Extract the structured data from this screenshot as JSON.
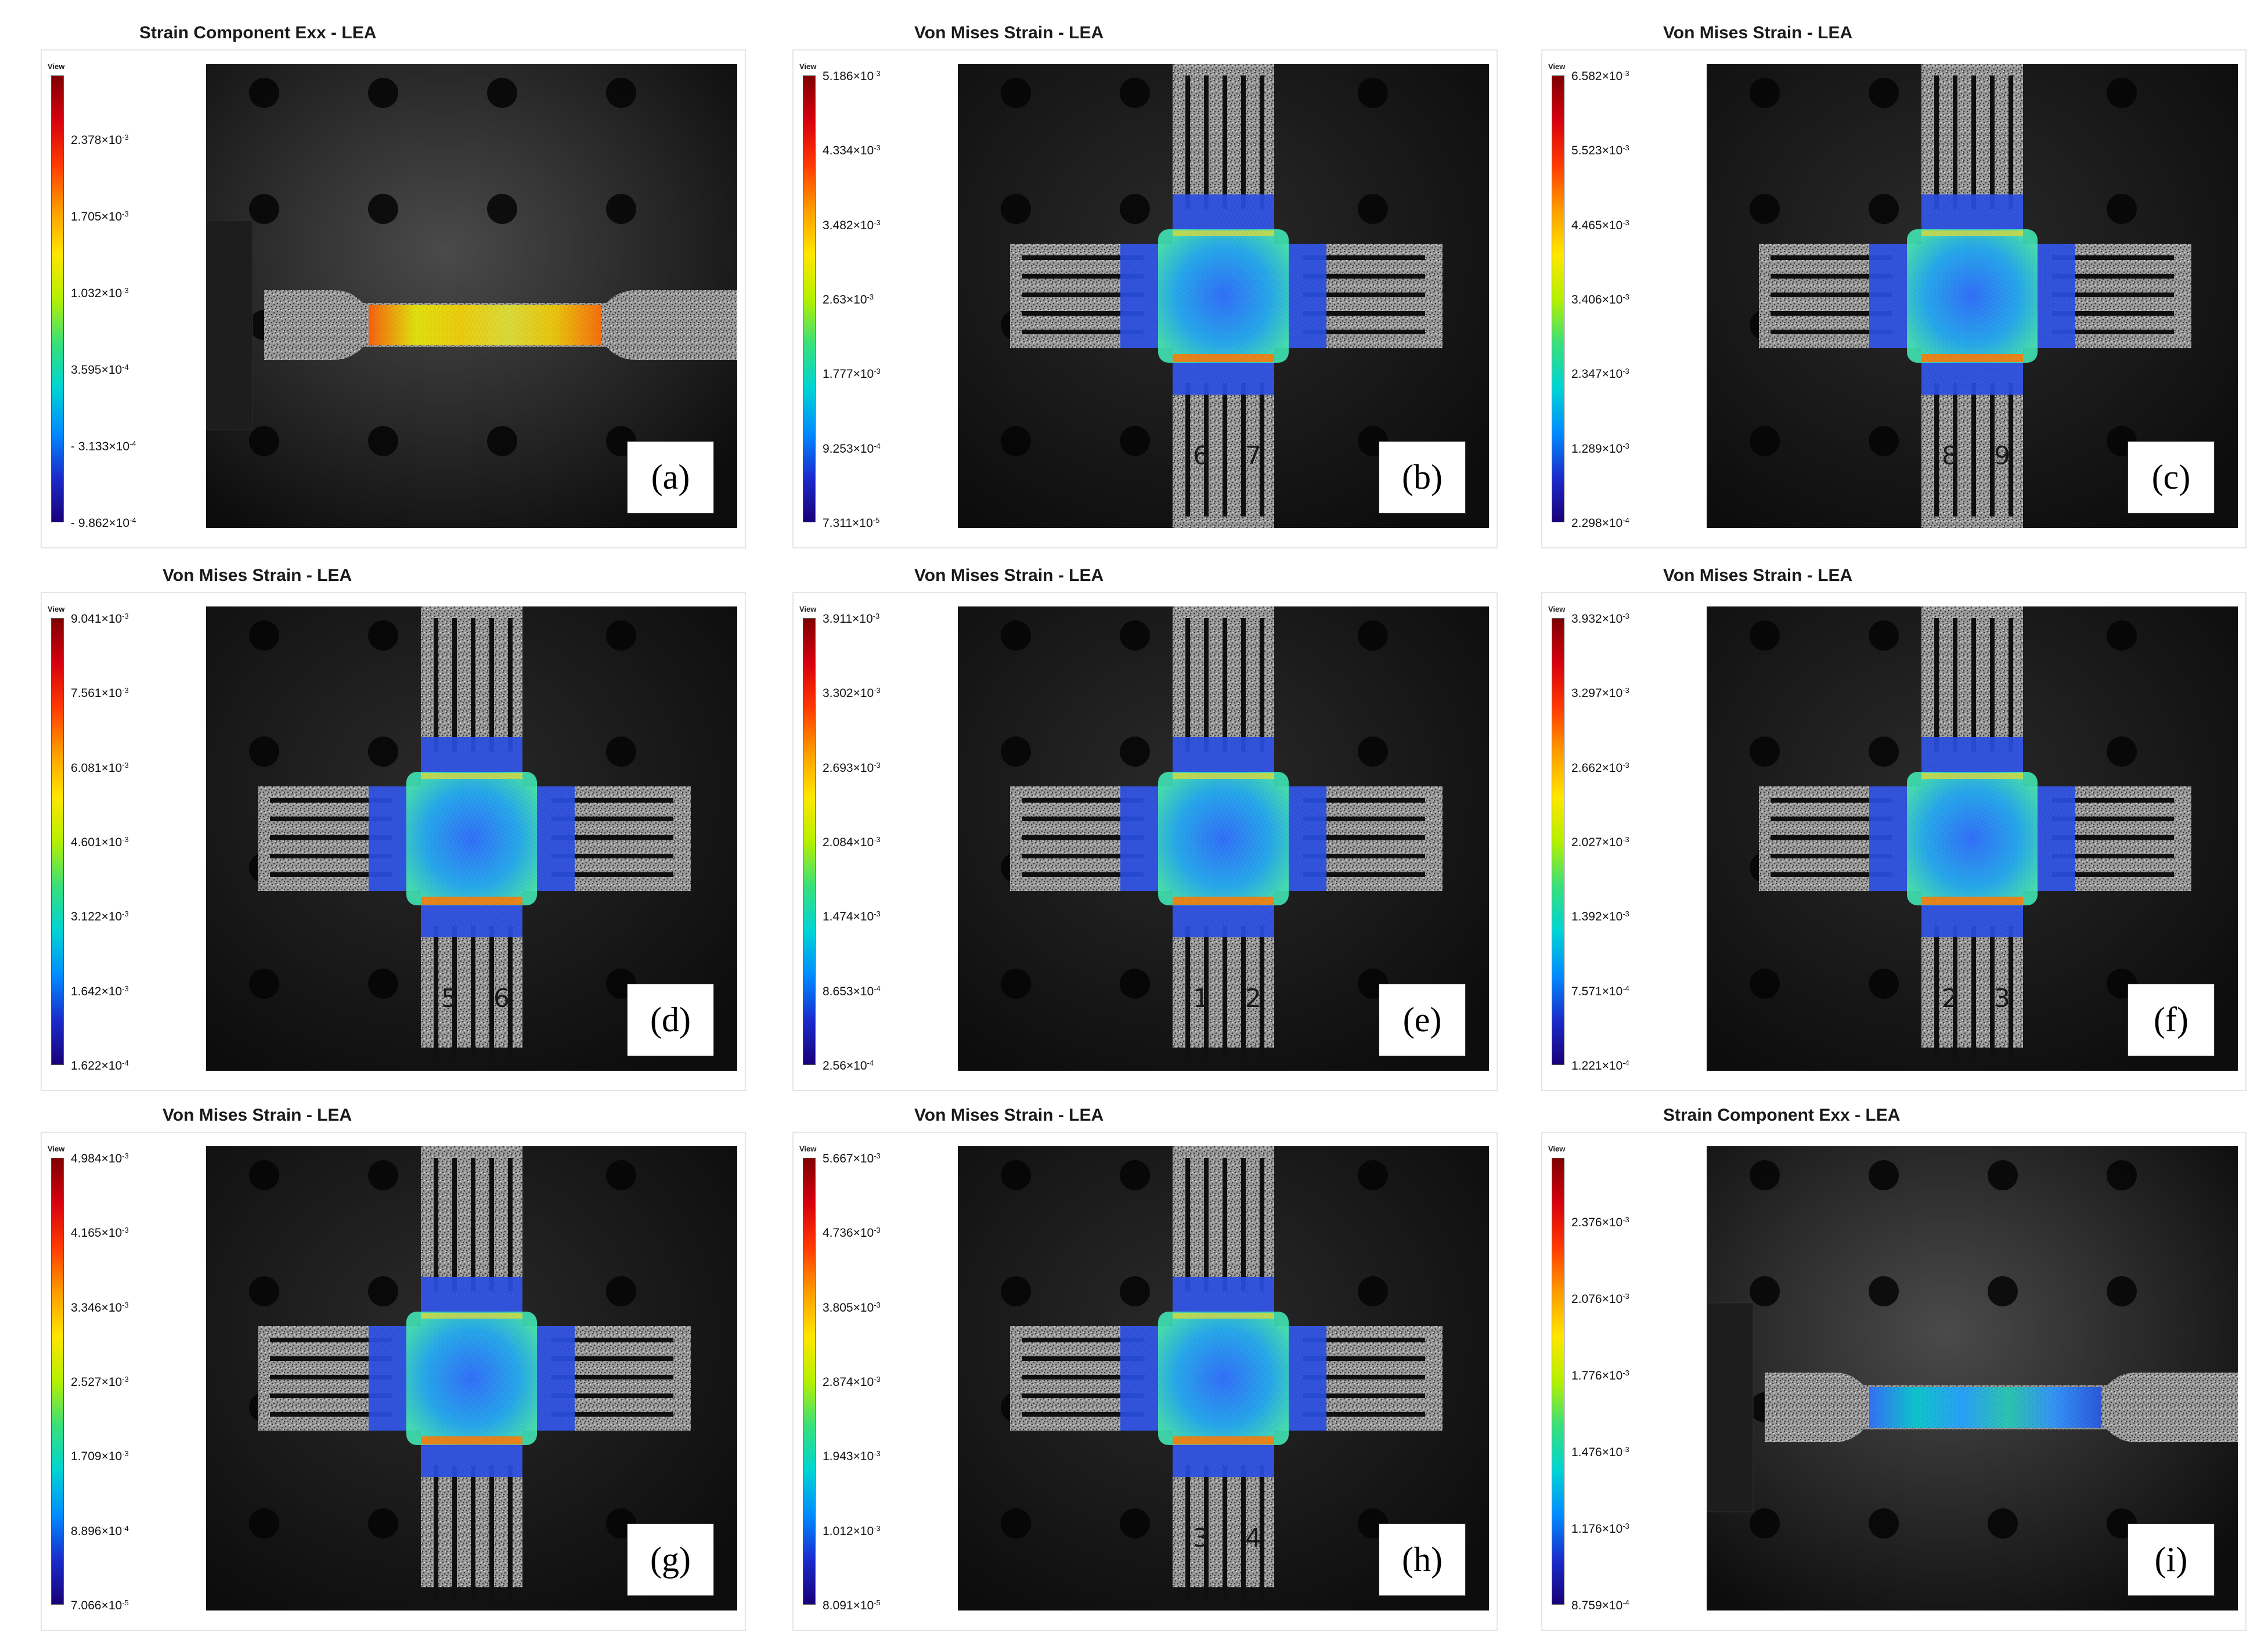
{
  "colormap": [
    "#7f0000",
    "#d7000f",
    "#ff3a00",
    "#ff9c00",
    "#ffe600",
    "#b5f000",
    "#38e07a",
    "#00d4d4",
    "#008cff",
    "#1a2ccc",
    "#19007a"
  ],
  "panels": [
    {
      "id": "a",
      "label": "(a)",
      "title": "Strain Component Exx - LEA",
      "view": "View",
      "type": "tensile",
      "field": "yellow",
      "ticks": [
        {
          "m": "2.378",
          "e": "-3"
        },
        {
          "m": "1.705",
          "e": "-3"
        },
        {
          "m": "1.032",
          "e": "-3"
        },
        {
          "m": "3.595",
          "e": "-4"
        },
        {
          "m": "- 3.133",
          "e": "-4"
        },
        {
          "m": "- 9.862",
          "e": "-4"
        }
      ]
    },
    {
      "id": "b",
      "label": "(b)",
      "title": "Von Mises Strain - LEA",
      "view": "View",
      "type": "cross",
      "variant": "tallbottom",
      "nums": [
        "6",
        "7"
      ],
      "ticks": [
        {
          "m": "5.186",
          "e": "-3"
        },
        {
          "m": "4.334",
          "e": "-3"
        },
        {
          "m": "3.482",
          "e": "-3"
        },
        {
          "m": "2.63",
          "e": "-3"
        },
        {
          "m": "1.777",
          "e": "-3"
        },
        {
          "m": "9.253",
          "e": "-4"
        },
        {
          "m": "7.311",
          "e": "-5"
        }
      ]
    },
    {
      "id": "c",
      "label": "(c)",
      "title": "Von Mises Strain - LEA",
      "view": "View",
      "type": "cross",
      "variant": "tallbottom",
      "nums": [
        "8",
        "9"
      ],
      "ticks": [
        {
          "m": "6.582",
          "e": "-3"
        },
        {
          "m": "5.523",
          "e": "-3"
        },
        {
          "m": "4.465",
          "e": "-3"
        },
        {
          "m": "3.406",
          "e": "-3"
        },
        {
          "m": "2.347",
          "e": "-3"
        },
        {
          "m": "1.289",
          "e": "-3"
        },
        {
          "m": "2.298",
          "e": "-4"
        }
      ]
    },
    {
      "id": "d",
      "label": "(d)",
      "title": "Von Mises Strain - LEA",
      "view": "View",
      "type": "cross",
      "variant": "full",
      "nums": [
        "5",
        "6"
      ],
      "ticks": [
        {
          "m": "9.041",
          "e": "-3"
        },
        {
          "m": "7.561",
          "e": "-3"
        },
        {
          "m": "6.081",
          "e": "-3"
        },
        {
          "m": "4.601",
          "e": "-3"
        },
        {
          "m": "3.122",
          "e": "-3"
        },
        {
          "m": "1.642",
          "e": "-3"
        },
        {
          "m": "1.622",
          "e": "-4"
        }
      ]
    },
    {
      "id": "e",
      "label": "(e)",
      "title": "Von Mises Strain - LEA",
      "view": "View",
      "type": "cross",
      "variant": "full",
      "nums": [
        "1",
        "2"
      ],
      "ticks": [
        {
          "m": "3.911",
          "e": "-3"
        },
        {
          "m": "3.302",
          "e": "-3"
        },
        {
          "m": "2.693",
          "e": "-3"
        },
        {
          "m": "2.084",
          "e": "-3"
        },
        {
          "m": "1.474",
          "e": "-3"
        },
        {
          "m": "8.653",
          "e": "-4"
        },
        {
          "m": "2.56",
          "e": "-4"
        }
      ]
    },
    {
      "id": "f",
      "label": "(f)",
      "title": "Von Mises Strain - LEA",
      "view": "View",
      "type": "cross",
      "variant": "full",
      "nums": [
        "2",
        "3"
      ],
      "ticks": [
        {
          "m": "3.932",
          "e": "-3"
        },
        {
          "m": "3.297",
          "e": "-3"
        },
        {
          "m": "2.662",
          "e": "-3"
        },
        {
          "m": "2.027",
          "e": "-3"
        },
        {
          "m": "1.392",
          "e": "-3"
        },
        {
          "m": "7.571",
          "e": "-4"
        },
        {
          "m": "1.221",
          "e": "-4"
        }
      ]
    },
    {
      "id": "g",
      "label": "(g)",
      "title": "Von Mises Strain - LEA",
      "view": "View",
      "type": "cross",
      "variant": "full",
      "nums": [],
      "ticks": [
        {
          "m": "4.984",
          "e": "-3"
        },
        {
          "m": "4.165",
          "e": "-3"
        },
        {
          "m": "3.346",
          "e": "-3"
        },
        {
          "m": "2.527",
          "e": "-3"
        },
        {
          "m": "1.709",
          "e": "-3"
        },
        {
          "m": "8.896",
          "e": "-4"
        },
        {
          "m": "7.066",
          "e": "-5"
        }
      ]
    },
    {
      "id": "h",
      "label": "(h)",
      "title": "Von Mises Strain - LEA",
      "view": "View",
      "type": "cross",
      "variant": "full",
      "nums": [
        "3",
        "4"
      ],
      "ticks": [
        {
          "m": "5.667",
          "e": "-3"
        },
        {
          "m": "4.736",
          "e": "-3"
        },
        {
          "m": "3.805",
          "e": "-3"
        },
        {
          "m": "2.874",
          "e": "-3"
        },
        {
          "m": "1.943",
          "e": "-3"
        },
        {
          "m": "1.012",
          "e": "-3"
        },
        {
          "m": "8.091",
          "e": "-5"
        }
      ]
    },
    {
      "id": "i",
      "label": "(i)",
      "title": "Strain Component Exx - LEA",
      "view": "View",
      "type": "tensile",
      "field": "blue",
      "ticks": [
        {
          "m": "2.376",
          "e": "-3"
        },
        {
          "m": "2.076",
          "e": "-3"
        },
        {
          "m": "1.776",
          "e": "-3"
        },
        {
          "m": "1.476",
          "e": "-3"
        },
        {
          "m": "1.176",
          "e": "-3"
        },
        {
          "m": "8.759",
          "e": "-4"
        }
      ]
    }
  ]
}
